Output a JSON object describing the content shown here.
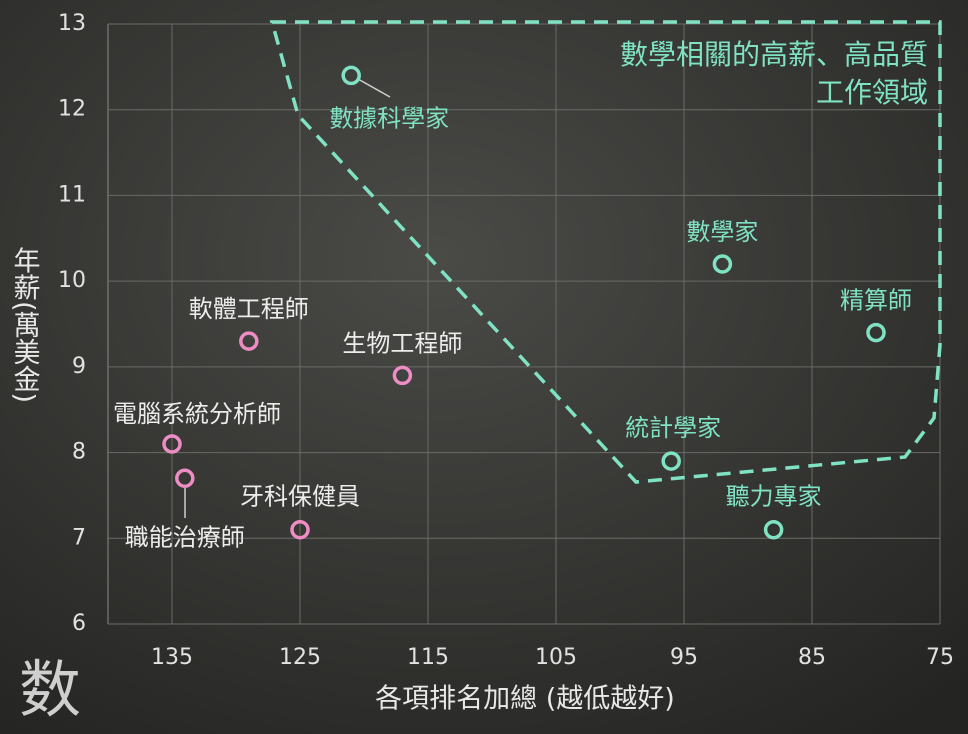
{
  "chart_data": {
    "type": "scatter",
    "annotation": [
      "數學相關的高薪、高品質",
      "工作領域"
    ],
    "x_label": "各項排名加總 (越低越好)",
    "y_label": "年薪(萬美金)",
    "logo": "数",
    "xlim": [
      140,
      75
    ],
    "xticks": [
      135,
      125,
      115,
      105,
      95,
      85,
      75
    ],
    "ylim": [
      6,
      13
    ],
    "yticks": [
      6,
      7,
      8,
      9,
      10,
      11,
      12,
      13
    ],
    "grid": true,
    "series": [
      {
        "color": "#7fe3c3",
        "x": [
          121,
          92,
          80,
          96,
          88
        ],
        "values": [
          12.4,
          10.2,
          9.4,
          7.9,
          7.1
        ],
        "labels": [
          "數據科學家",
          "數學家",
          "精算師",
          "統計學家",
          "聽力專家"
        ]
      },
      {
        "color": "#ee8cc4",
        "x": [
          129,
          117,
          135,
          134,
          125
        ],
        "values": [
          9.3,
          8.9,
          8.1,
          7.7,
          7.1
        ],
        "labels": [
          "軟體工程師",
          "生物工程師",
          "電腦系統分析師",
          "職能治療師",
          "牙科保健員"
        ]
      }
    ]
  }
}
